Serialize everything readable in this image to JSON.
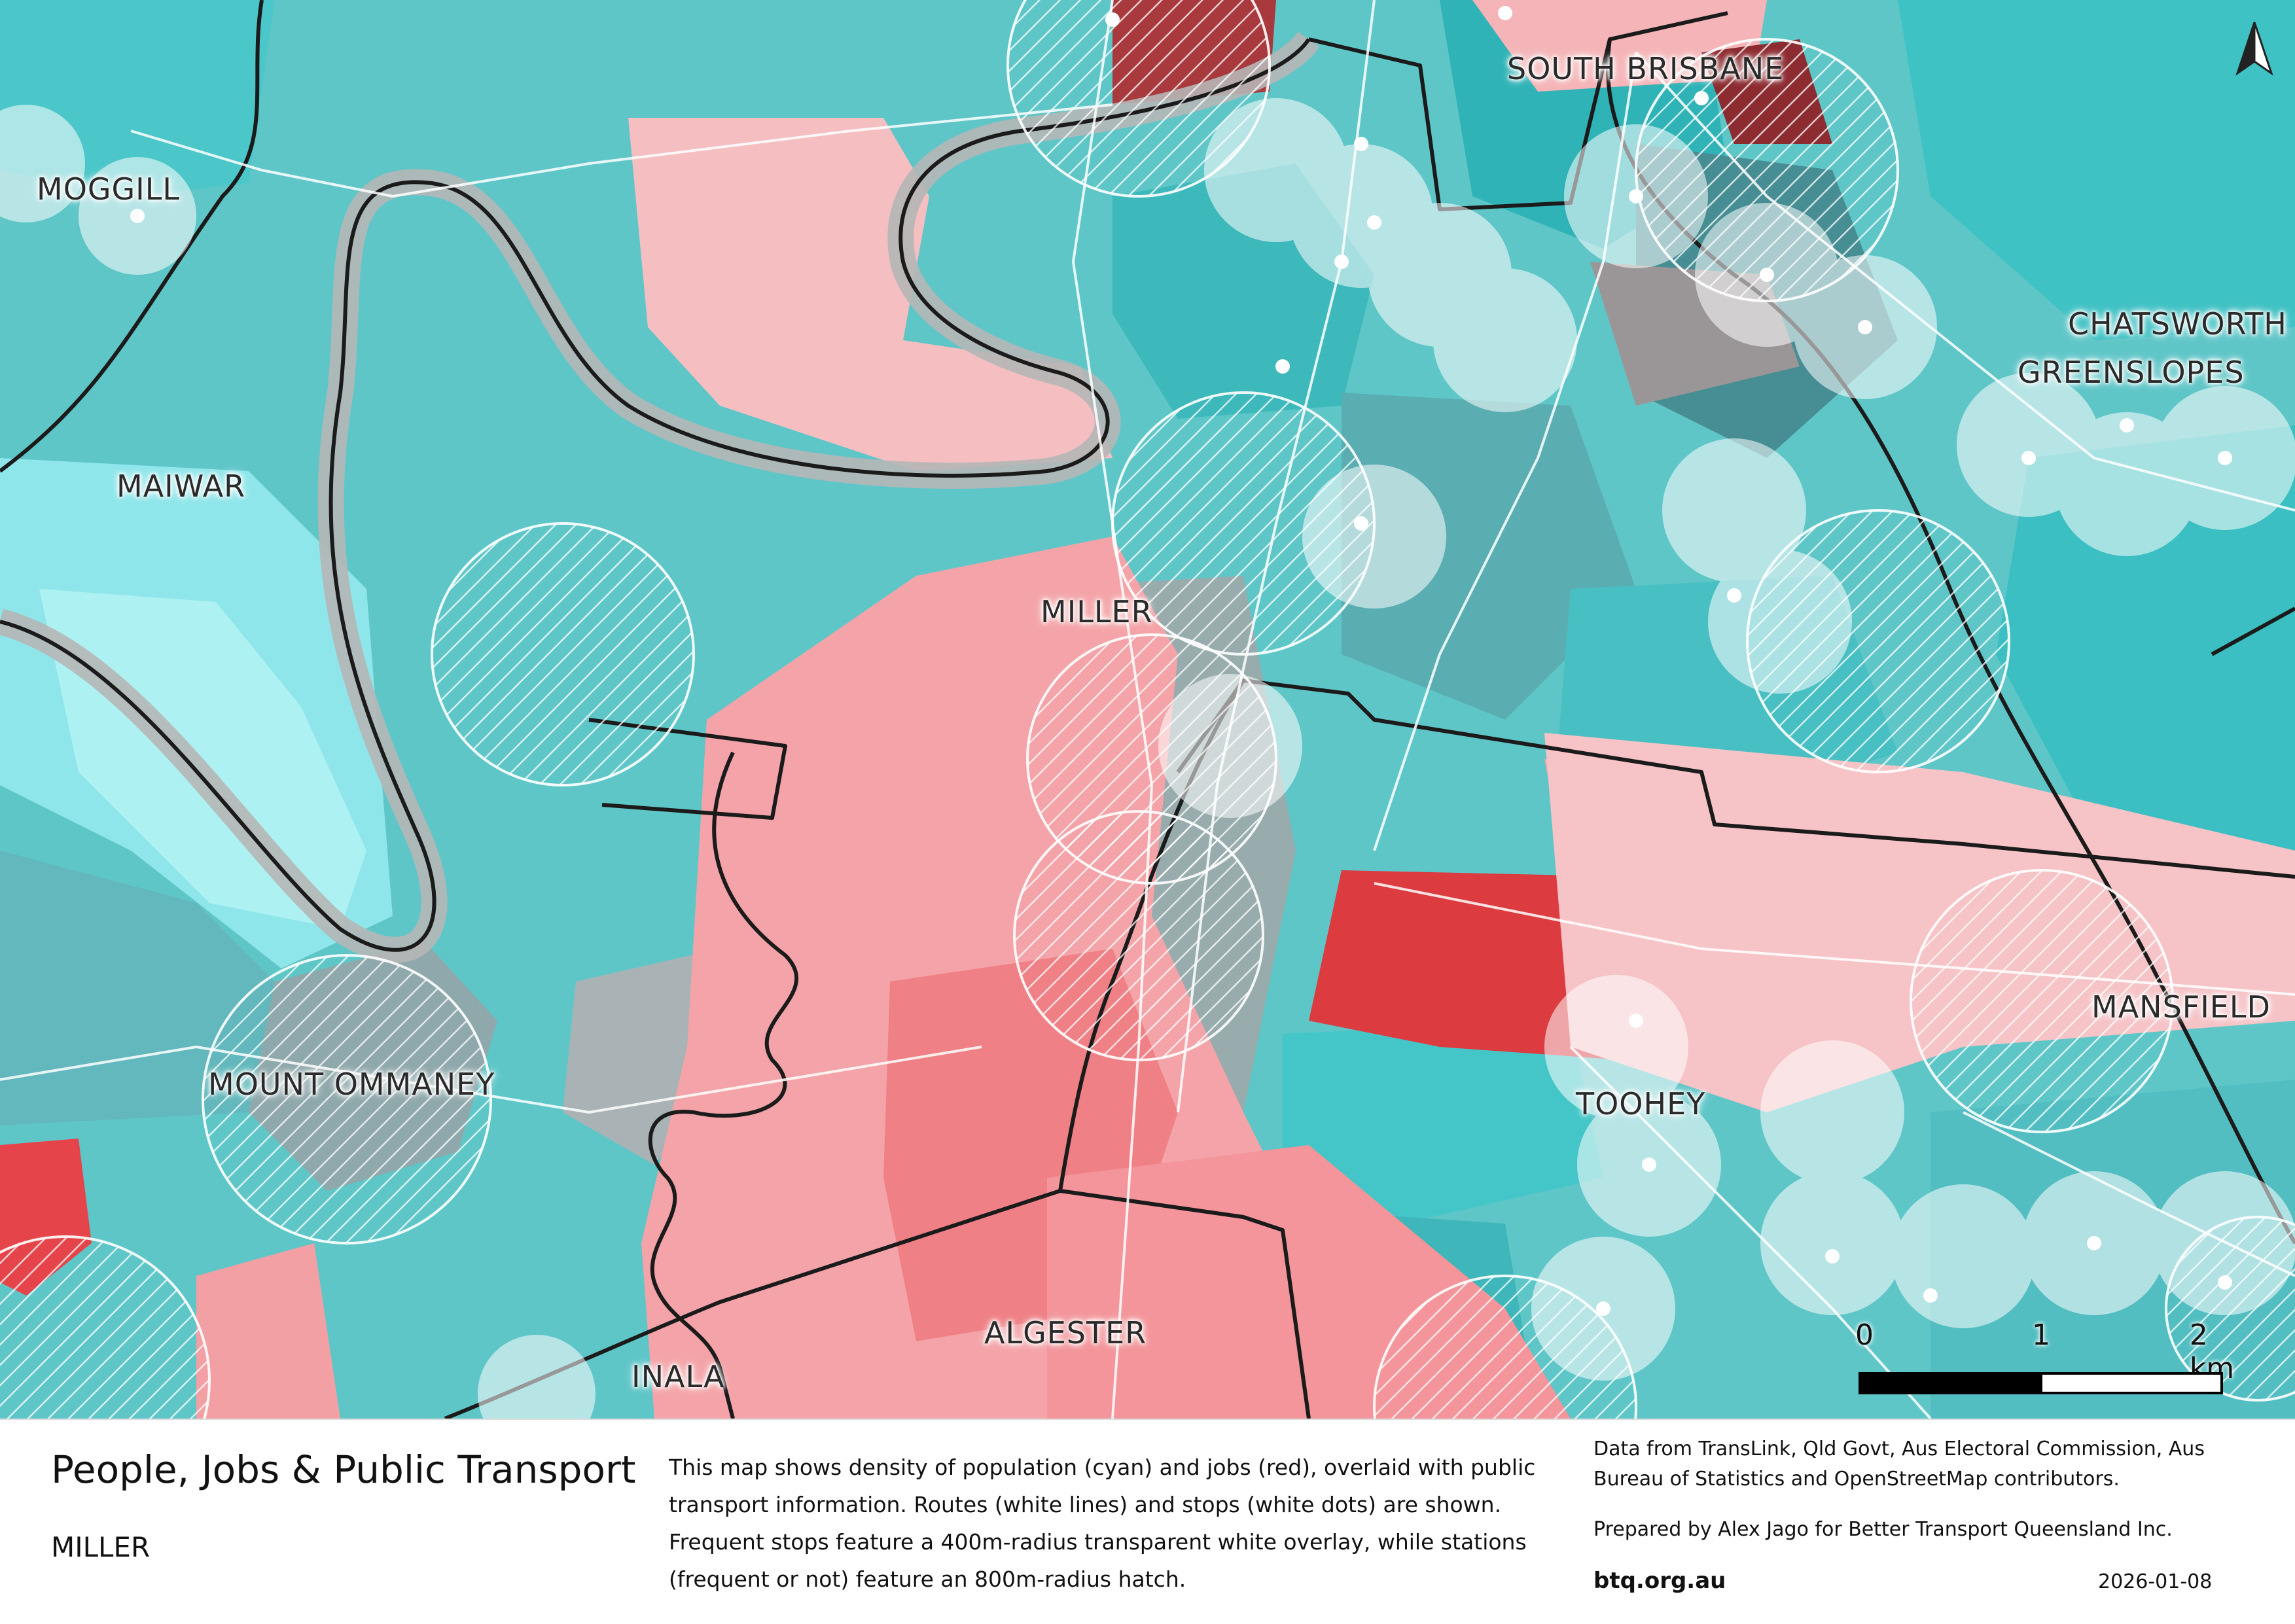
{
  "map": {
    "suburb_labels": [
      "SOUTH BRISBANE",
      "MOGGILL",
      "CHATSWORTH",
      "GREENSLOPES",
      "MAIWAR",
      "MILLER",
      "MANSFIELD",
      "MOUNT OMMANEY",
      "TOOHEY",
      "ALGESTER",
      "INALA"
    ],
    "north_arrow": "north-arrow-icon",
    "scale_bar": {
      "ticks": [
        "0",
        "1",
        "2 km"
      ]
    },
    "colors": {
      "population": "#3fc4c4",
      "jobs": "#e8474a",
      "routes": "#ffffff",
      "boundaries": "#1a1a1a"
    }
  },
  "legend": {
    "title": "People, Jobs & Public Transport",
    "subtitle": "MILLER",
    "description": "This map shows density of population (cyan) and jobs (red), overlaid with public transport information. Routes (white lines) and stops (white dots) are shown. Frequent stops feature a 400m-radius transparent white overlay, while stations (frequent or not) feature an 800m-radius hatch.",
    "credits": "Data from TransLink,  Qld Govt,  Aus Electoral Commission, Aus Bureau of Statistics and OpenStreetMap contributors.",
    "prepared_by": "Prepared by Alex Jago for Better Transport Queensland Inc.",
    "website": "btq.org.au",
    "date": "2026-01-08"
  }
}
